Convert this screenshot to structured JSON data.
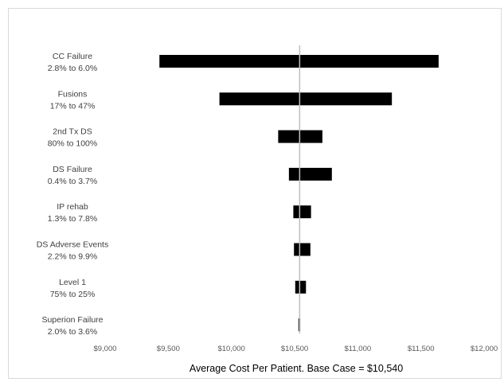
{
  "chart_data": {
    "type": "bar",
    "orientation": "horizontal",
    "variant": "tornado",
    "title": "",
    "xlabel": "Average Cost Per Patient. Base Case = $10,540",
    "ylabel": "",
    "base_case": 10540,
    "xlim": [
      9000,
      12000
    ],
    "x_ticks": [
      9000,
      9500,
      10000,
      10500,
      11000,
      11500,
      12000
    ],
    "x_tick_labels": [
      "$9,000",
      "$9,500",
      "$10,000",
      "$10,500",
      "$11,000",
      "$11,500",
      "$12,000"
    ],
    "grid": false,
    "legend": "none",
    "bars": [
      {
        "name": "CC Failure",
        "range": "2.8% to 6.0%",
        "low": 9430,
        "high": 11640
      },
      {
        "name": "Fusions",
        "range": "17% to 47%",
        "low": 9905,
        "high": 11270
      },
      {
        "name": "2nd Tx DS",
        "range": "80% to 100%",
        "low": 10370,
        "high": 10720
      },
      {
        "name": "DS Failure",
        "range": "0.4% to 3.7%",
        "low": 10455,
        "high": 10795
      },
      {
        "name": "IP rehab",
        "range": "1.3% to 7.8%",
        "low": 10490,
        "high": 10630
      },
      {
        "name": "DS Adverse Events",
        "range": "2.2% to 9.9%",
        "low": 10495,
        "high": 10625
      },
      {
        "name": "Level 1",
        "range": "75% to 25%",
        "low": 10505,
        "high": 10590
      },
      {
        "name": "Superion Failure",
        "range": "2.0% to 3.6%",
        "low": 10530,
        "high": 10545
      }
    ]
  },
  "colors": {
    "bar": "#000000",
    "base_line": "#bfbfbf",
    "axis_text": "#595959",
    "label_text": "#404040"
  }
}
